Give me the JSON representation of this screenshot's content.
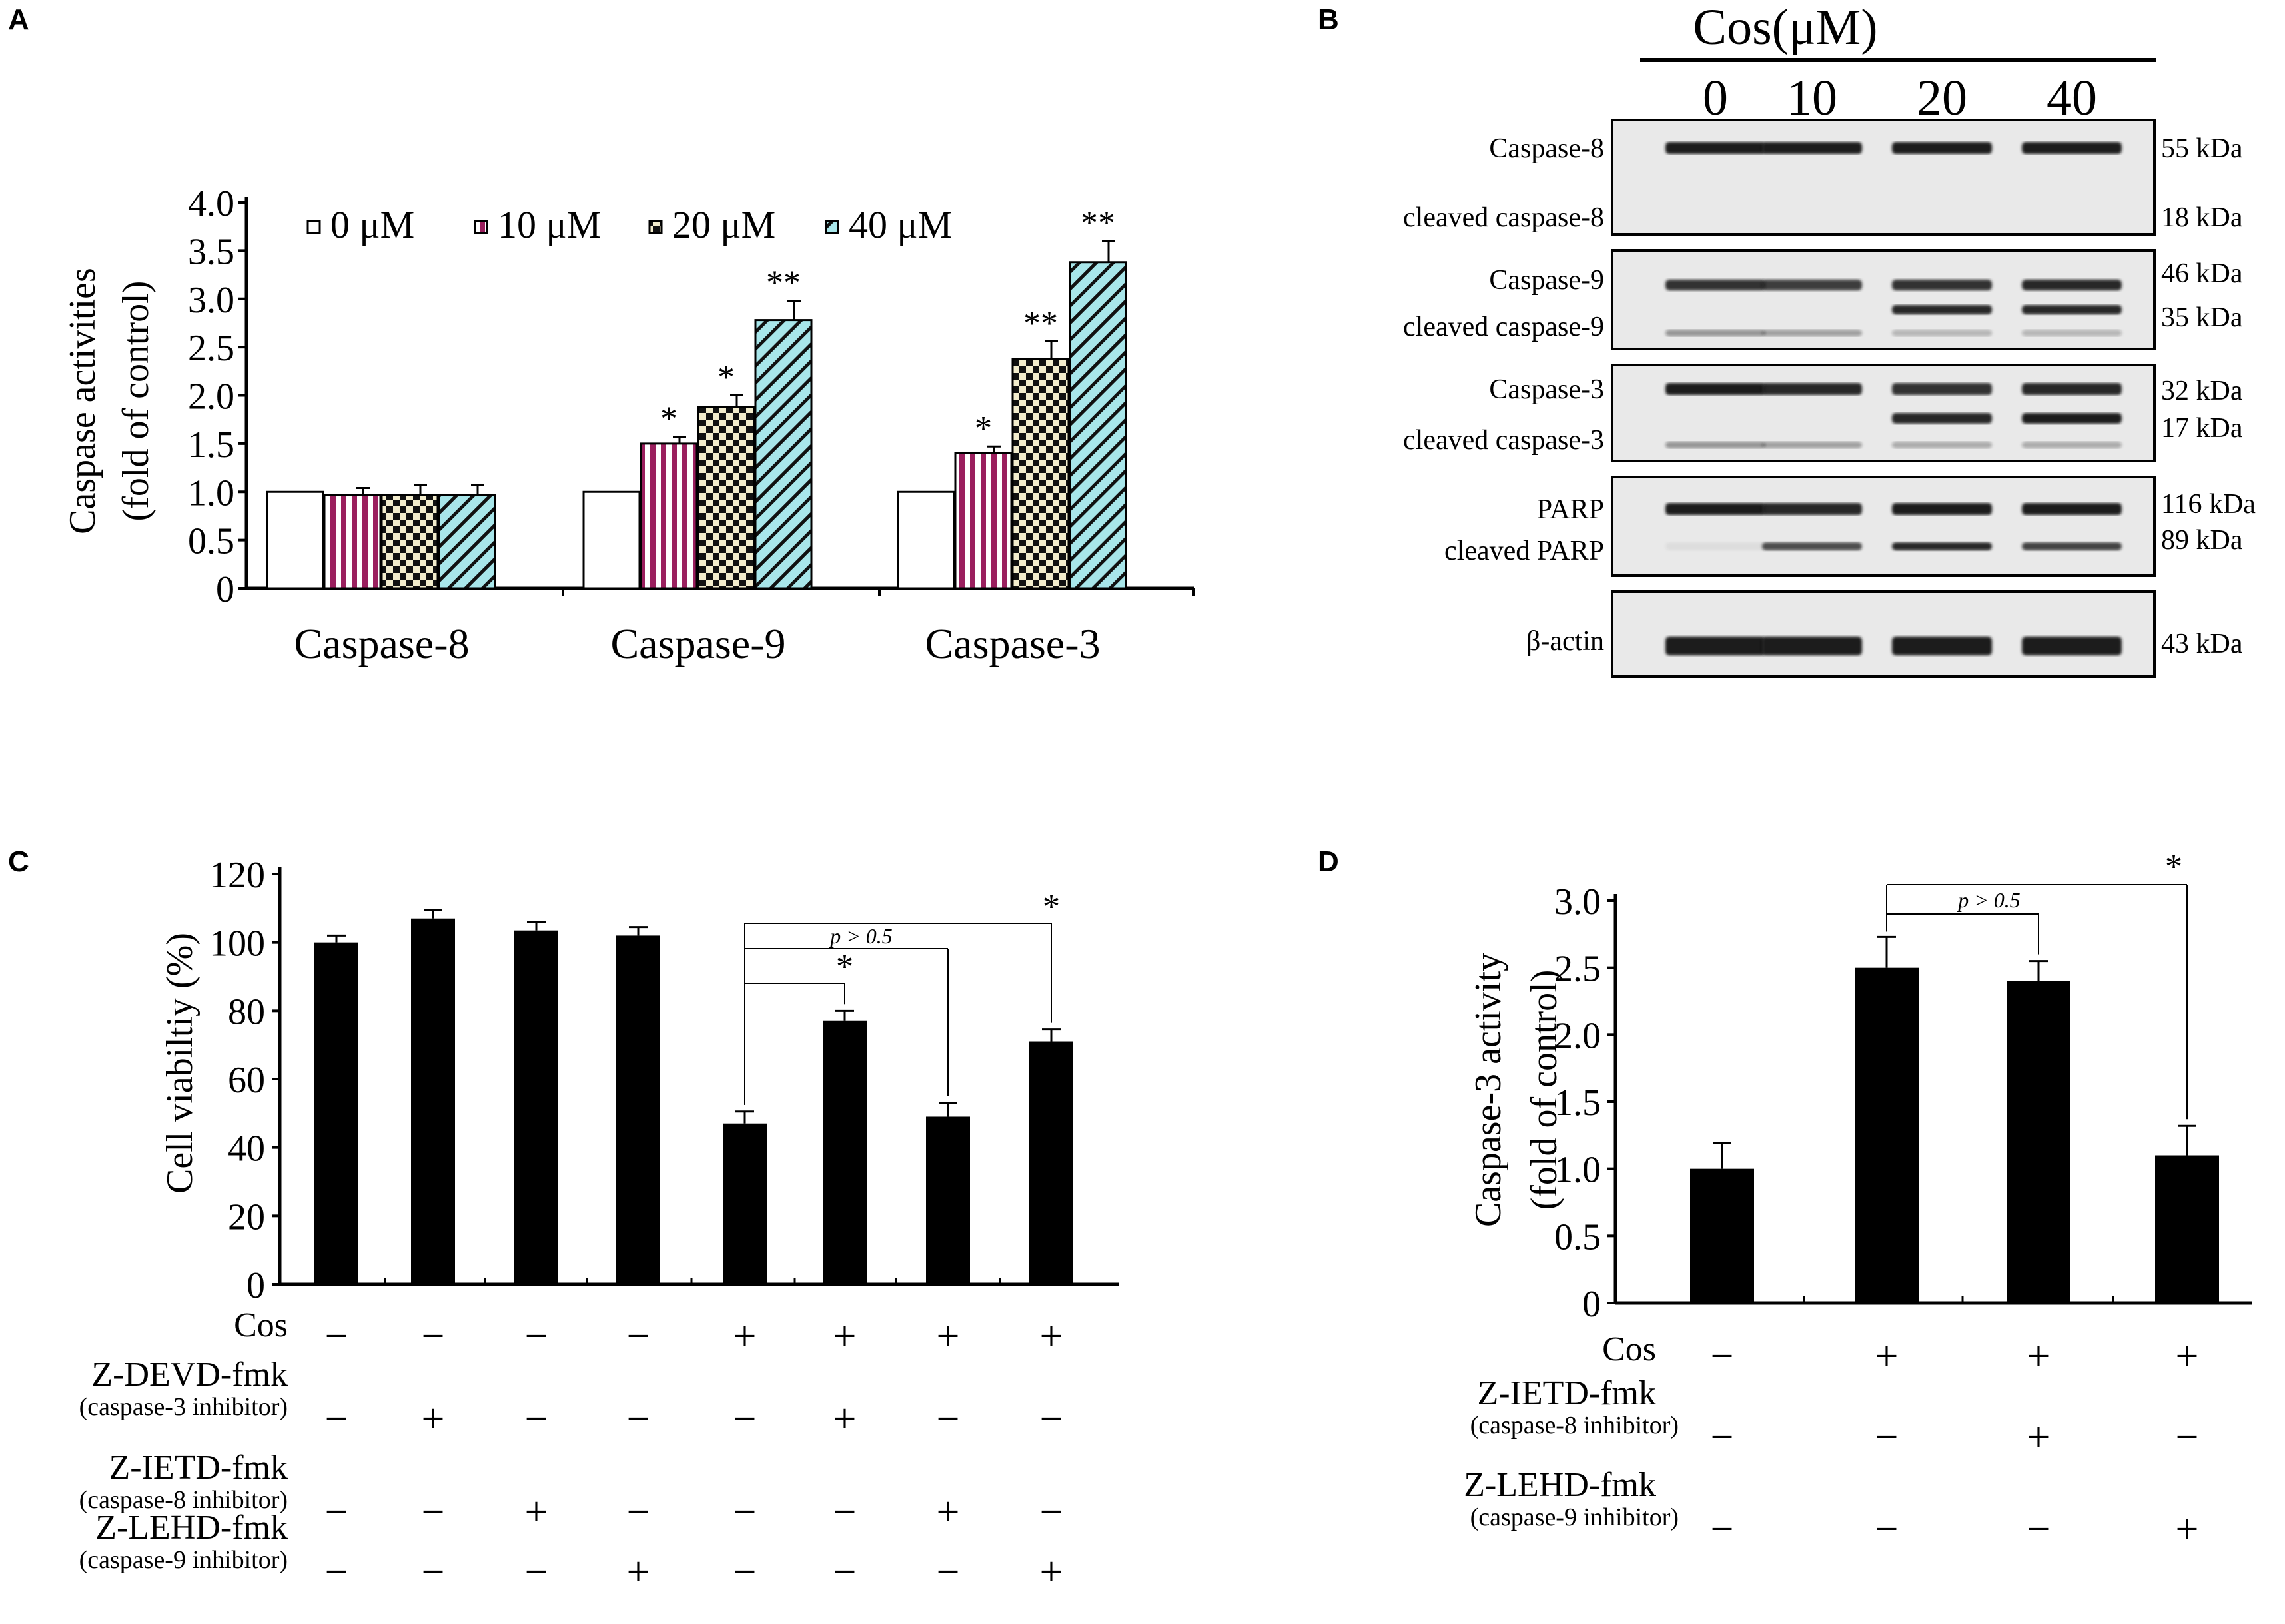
{
  "colors": {
    "black": "#000000",
    "bar_0": "#ffffff",
    "bar_10": "#9b1f5e",
    "bar_20": "#f2eccc",
    "bar_40": "#a8e6ea",
    "blot_bg": "#e9e9e9",
    "blot_band": "#1c1c1c"
  },
  "panel_a": {
    "label": "A",
    "chart_data": {
      "type": "bar",
      "categories": [
        "Caspase-8",
        "Caspase-9",
        "Caspase-3"
      ],
      "ylabel_line1": "Caspase activities",
      "ylabel_line2": "(fold of control)",
      "ylim": [
        0,
        4.0
      ],
      "yticks": [
        "0",
        "0.5",
        "1.0",
        "1.5",
        "2.0",
        "2.5",
        "3.0",
        "3.5",
        "4.0"
      ],
      "series": [
        {
          "name": "0 μM",
          "values": [
            1.0,
            1.0,
            1.0
          ],
          "errors": [
            0,
            0,
            0
          ],
          "marks": [
            "",
            "",
            ""
          ],
          "pattern": "blank"
        },
        {
          "name": "10 μM",
          "values": [
            0.97,
            1.5,
            1.4
          ],
          "errors": [
            0.07,
            0.07,
            0.07
          ],
          "marks": [
            "",
            "*",
            "*"
          ],
          "pattern": "vstripe"
        },
        {
          "name": "20 μM",
          "values": [
            0.97,
            1.88,
            2.38
          ],
          "errors": [
            0.1,
            0.12,
            0.18
          ],
          "marks": [
            "",
            "*",
            "**"
          ],
          "pattern": "check"
        },
        {
          "name": "40 μM",
          "values": [
            0.97,
            2.78,
            3.38
          ],
          "errors": [
            0.1,
            0.2,
            0.22
          ],
          "marks": [
            "",
            "**",
            "**"
          ],
          "pattern": "diag"
        }
      ]
    }
  },
  "panel_b": {
    "label": "B",
    "header": "Cos(μM)",
    "concentrations": [
      "0",
      "10",
      "20",
      "40"
    ],
    "blots": [
      {
        "labels": [
          "Caspase-8",
          "cleaved caspase-8"
        ],
        "kda": [
          "55 kDa",
          "18 kDa"
        ]
      },
      {
        "labels": [
          "Caspase-9",
          "cleaved caspase-9"
        ],
        "kda": [
          "46 kDa",
          "35 kDa"
        ]
      },
      {
        "labels": [
          "Caspase-3",
          "cleaved caspase-3"
        ],
        "kda": [
          "32 kDa",
          "17 kDa"
        ]
      },
      {
        "labels": [
          "PARP",
          "cleaved PARP"
        ],
        "kda": [
          "116 kDa",
          "89  kDa"
        ]
      },
      {
        "labels": [
          "β-actin"
        ],
        "kda": [
          "43 kDa"
        ]
      }
    ]
  },
  "panel_c": {
    "label": "C",
    "chart_data": {
      "type": "bar",
      "ylabel": "Cell viabiltiy (%)",
      "ylim": [
        0,
        120
      ],
      "yticks": [
        "0",
        "20",
        "40",
        "60",
        "80",
        "100",
        "120"
      ],
      "values": [
        100,
        107,
        103.5,
        102,
        47,
        77,
        49,
        71
      ],
      "errors": [
        2,
        2.5,
        2.5,
        2.5,
        3.5,
        3,
        4,
        3.5
      ],
      "annotations": [
        {
          "text": "*"
        },
        {
          "text": "p > 0.5"
        },
        {
          "text": "*"
        }
      ],
      "conditions": [
        {
          "name": "Cos",
          "sub": "",
          "signs": [
            "−",
            "−",
            "−",
            "−",
            "+",
            "+",
            "+",
            "+"
          ]
        },
        {
          "name": "Z-DEVD-fmk",
          "sub": "(caspase-3 inhibitor)",
          "signs": [
            "−",
            "+",
            "−",
            "−",
            "−",
            "+",
            "−",
            "−"
          ]
        },
        {
          "name": "Z-IETD-fmk",
          "sub": "(caspase-8 inhibitor)",
          "signs": [
            "−",
            "−",
            "+",
            "−",
            "−",
            "−",
            "+",
            "−"
          ]
        },
        {
          "name": "Z-LEHD-fmk",
          "sub": "(caspase-9 inhibitor)",
          "signs": [
            "−",
            "−",
            "−",
            "+",
            "−",
            "−",
            "−",
            "+"
          ]
        }
      ]
    }
  },
  "panel_d": {
    "label": "D",
    "chart_data": {
      "type": "bar",
      "ylabel_line1": "Caspase-3 activity",
      "ylabel_line2": "(fold of control)",
      "ylim": [
        0,
        3.0
      ],
      "yticks": [
        "0",
        "0.5",
        "1.0",
        "1.5",
        "2.0",
        "2.5",
        "3.0"
      ],
      "values": [
        1.0,
        2.5,
        2.4,
        1.1
      ],
      "errors": [
        0.19,
        0.23,
        0.15,
        0.22
      ],
      "annotations": [
        {
          "text": "p > 0.5"
        },
        {
          "text": "*"
        }
      ],
      "conditions": [
        {
          "name": "Cos",
          "sub": "",
          "signs": [
            "−",
            "+",
            "+",
            "+"
          ]
        },
        {
          "name": "Z-IETD-fmk",
          "sub": "(caspase-8 inhibitor)",
          "signs": [
            "−",
            "−",
            "+",
            "−"
          ]
        },
        {
          "name": "Z-LEHD-fmk",
          "sub": "(caspase-9 inhibitor)",
          "signs": [
            "−",
            "−",
            "−",
            "+"
          ]
        }
      ]
    }
  }
}
